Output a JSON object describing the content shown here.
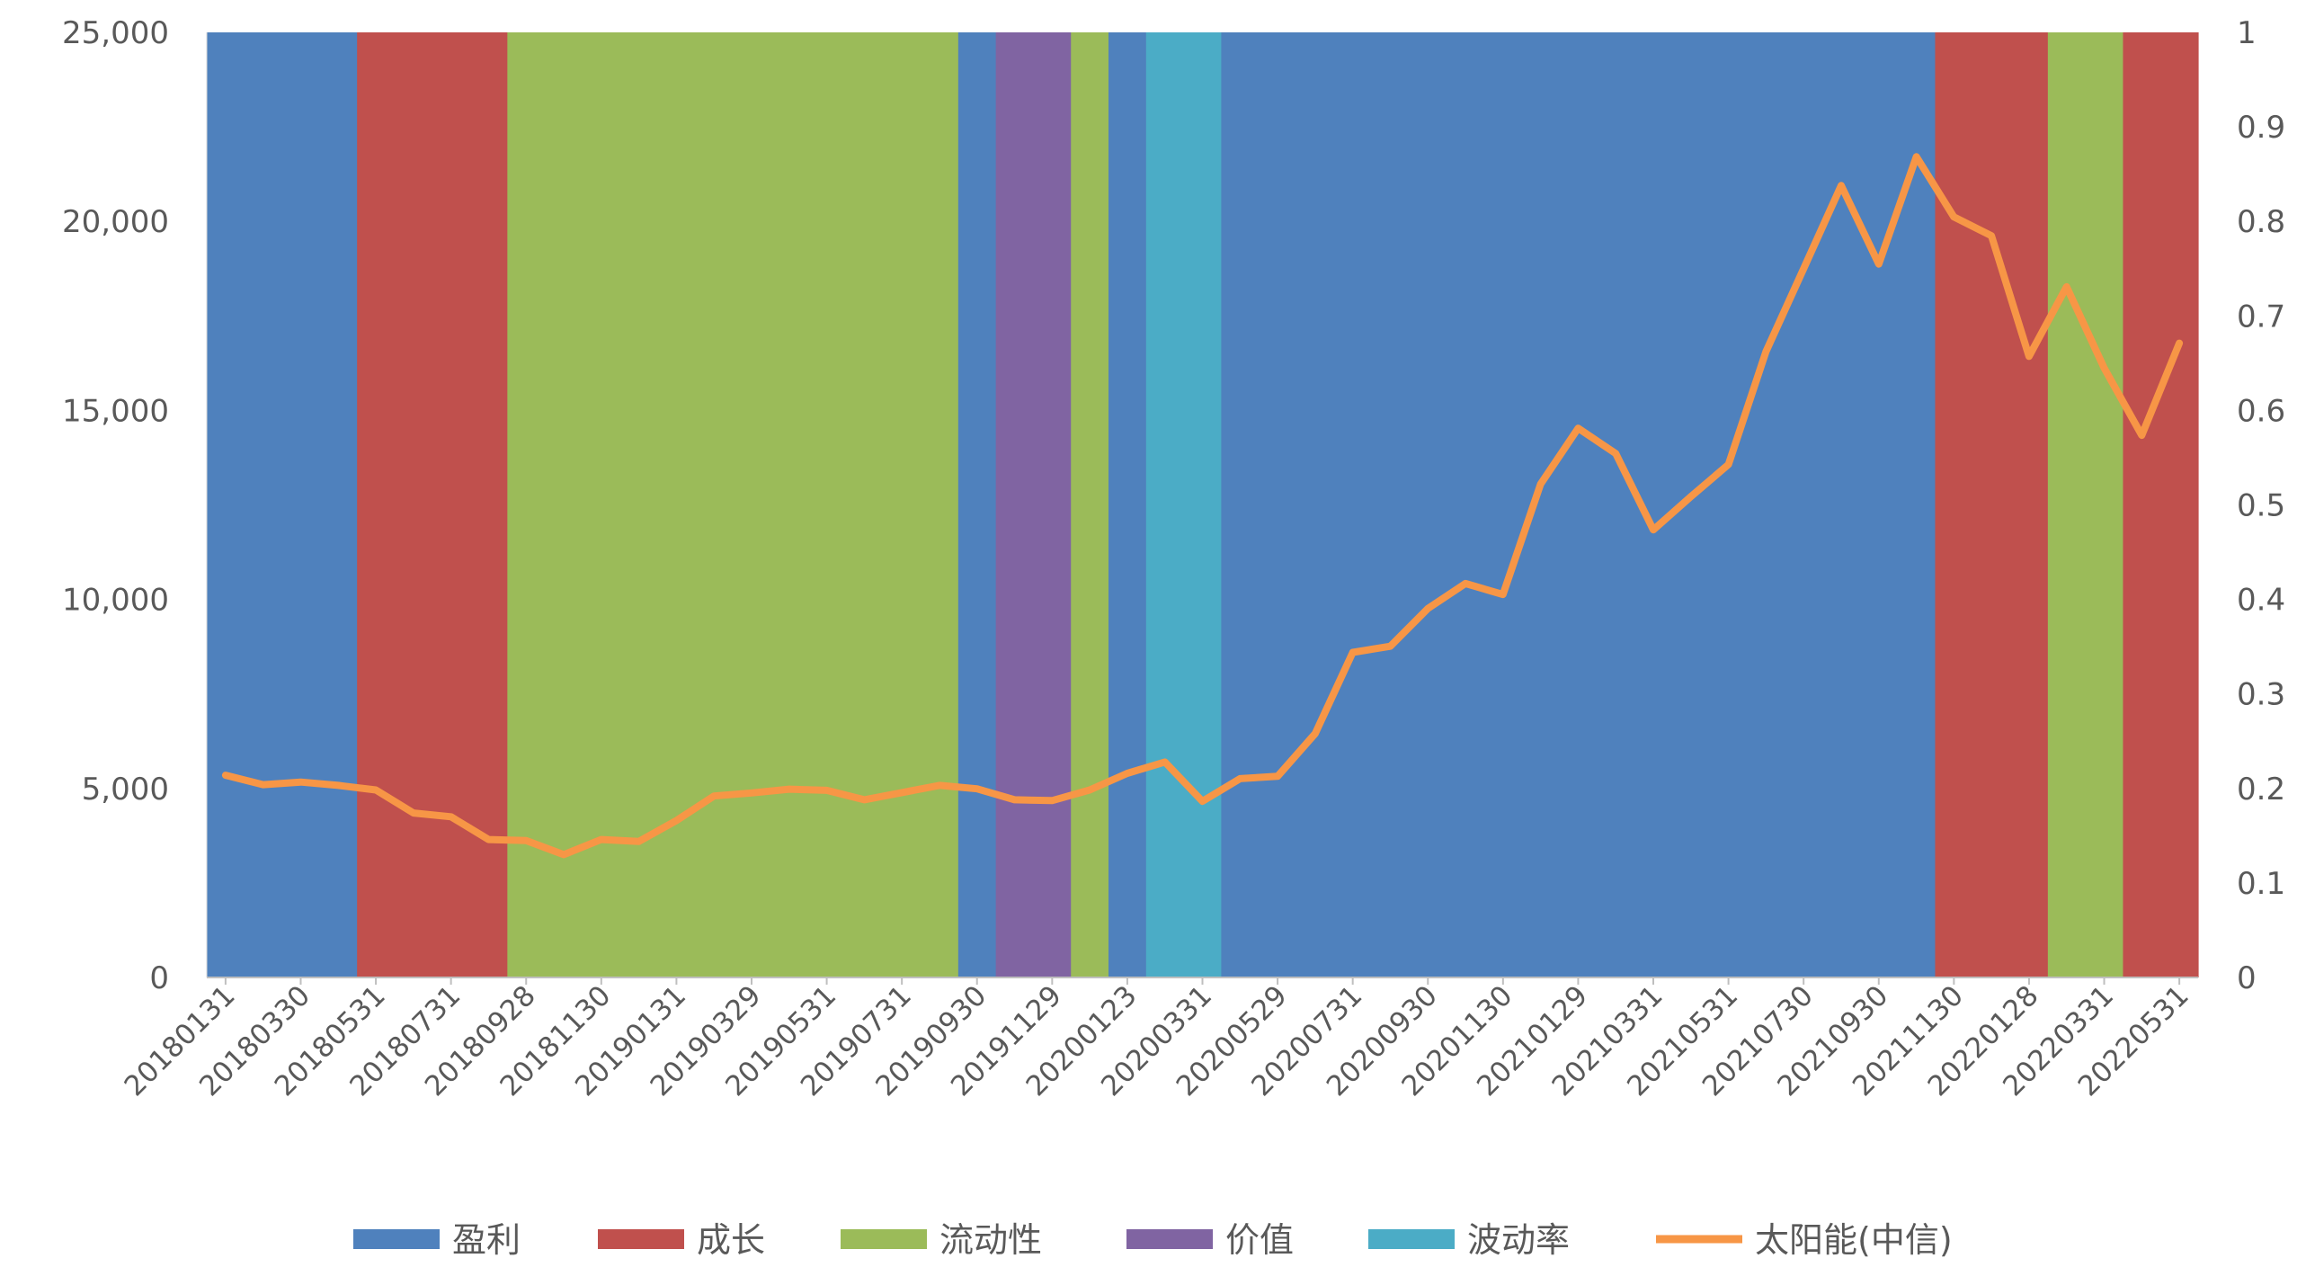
{
  "chart_data": {
    "type": "bar",
    "title": "",
    "xlabel": "",
    "ylabel": "",
    "y_left_lim": [
      0,
      25000
    ],
    "y_right_lim": [
      0,
      1
    ],
    "y_left_ticks": [
      "0",
      "5,000",
      "10,000",
      "15,000",
      "20,000",
      "25,000"
    ],
    "y_right_ticks": [
      "0",
      "0.1",
      "0.2",
      "0.3",
      "0.4",
      "0.5",
      "0.6",
      "0.7",
      "0.8",
      "0.9",
      "1"
    ],
    "x_tick_labels": [
      "20180131",
      "20180330",
      "20180531",
      "20180731",
      "20180928",
      "20181130",
      "20190131",
      "20190329",
      "20190531",
      "20190731",
      "20190930",
      "20191129",
      "20200123",
      "20200331",
      "20200529",
      "20200731",
      "20200930",
      "20201130",
      "20210129",
      "20210331",
      "20210531",
      "20210730",
      "20210930",
      "20211130",
      "20220128",
      "20220331",
      "20220531"
    ],
    "n_months": 53,
    "legend": {
      "placement": "bottom",
      "items": [
        {
          "key": "profit",
          "label": "盈利",
          "color": "#4F81BD"
        },
        {
          "key": "growth",
          "label": "成长",
          "color": "#C0504D"
        },
        {
          "key": "liquidity",
          "label": "流动性",
          "color": "#9BBB59"
        },
        {
          "key": "value",
          "label": "价值",
          "color": "#8064A2"
        },
        {
          "key": "volatility",
          "label": "波动率",
          "color": "#4BACC6"
        },
        {
          "key": "solar",
          "label": "太阳能(中信)",
          "color": "#F79646"
        }
      ]
    },
    "factor_sequence": [
      "profit",
      "profit",
      "profit",
      "profit",
      "growth",
      "growth",
      "growth",
      "growth",
      "liquidity",
      "liquidity",
      "liquidity",
      "liquidity",
      "liquidity",
      "liquidity",
      "liquidity",
      "liquidity",
      "liquidity",
      "liquidity",
      "liquidity",
      "liquidity",
      "profit",
      "value",
      "value",
      "liquidity",
      "profit",
      "volatility",
      "volatility",
      "profit",
      "profit",
      "profit",
      "profit",
      "profit",
      "profit",
      "profit",
      "profit",
      "profit",
      "profit",
      "profit",
      "profit",
      "profit",
      "profit",
      "profit",
      "profit",
      "profit",
      "profit",
      "profit",
      "growth",
      "growth",
      "growth",
      "liquidity",
      "liquidity",
      "growth",
      "growth"
    ],
    "series": [
      {
        "name": "太阳能(中信)",
        "axis": "left",
        "values": [
          5350,
          5100,
          5170,
          5080,
          4960,
          4350,
          4250,
          3650,
          3620,
          3250,
          3650,
          3600,
          4150,
          4800,
          4880,
          4980,
          4950,
          4700,
          4890,
          5080,
          4990,
          4700,
          4680,
          4960,
          5400,
          5700,
          4660,
          5260,
          5320,
          6450,
          8600,
          8760,
          9760,
          10420,
          10130,
          13050,
          14530,
          13860,
          11840,
          12720,
          13570,
          16560,
          18750,
          20950,
          18870,
          21710,
          20120,
          19620,
          16430,
          18270,
          16120,
          14340,
          16780
        ]
      }
    ]
  }
}
